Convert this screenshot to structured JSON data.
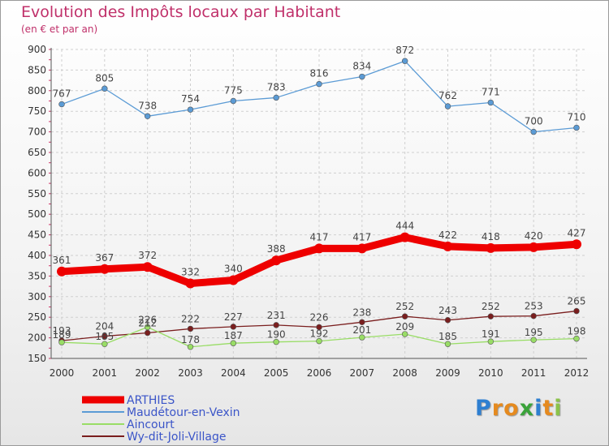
{
  "chart_data": {
    "type": "line",
    "title": "Evolution des Impôts locaux par Habitant",
    "subtitle": "(en € et par an)",
    "xlabel": "",
    "ylabel": "",
    "x": [
      "2000",
      "2001",
      "2002",
      "2003",
      "2004",
      "2005",
      "2006",
      "2007",
      "2008",
      "2009",
      "2010",
      "2011",
      "2012"
    ],
    "ylim": [
      150,
      900
    ],
    "yticks": [
      "150",
      "200",
      "250",
      "300",
      "350",
      "400",
      "450",
      "500",
      "550",
      "600",
      "650",
      "700",
      "750",
      "800",
      "850",
      "900"
    ],
    "grid": true,
    "legend_position": "bottom-left",
    "series": [
      {
        "name": "ARTHIES",
        "color": "#ee0000",
        "values": [
          361,
          367,
          372,
          332,
          340,
          388,
          417,
          417,
          444,
          422,
          418,
          420,
          427
        ],
        "labels": [
          "361",
          "367",
          "372",
          "332",
          "340",
          "388",
          "417",
          "417",
          "444",
          "422",
          "418",
          "420",
          "427"
        ]
      },
      {
        "name": "Maudétour-en-Vexin",
        "color": "#5b9bd5",
        "values": [
          767,
          805,
          738,
          754,
          775,
          783,
          816,
          834,
          872,
          762,
          771,
          700,
          710
        ],
        "labels": [
          "767",
          "805",
          "738",
          "754",
          "775",
          "783",
          "816",
          "834",
          "872",
          "762",
          "771",
          "700",
          "710"
        ]
      },
      {
        "name": "Aincourt",
        "color": "#99dd66",
        "values": [
          189,
          185,
          226,
          178,
          187,
          190,
          192,
          201,
          209,
          185,
          191,
          195,
          198
        ],
        "labels": [
          "189",
          "185",
          "226",
          "178",
          "187",
          "190",
          "192",
          "201",
          "209",
          "185",
          "191",
          "195",
          "198"
        ]
      },
      {
        "name": "Wy-dit-Joli-Village",
        "color": "#7a1e1e",
        "values": [
          193,
          204,
          212,
          222,
          227,
          231,
          226,
          238,
          252,
          243,
          252,
          253,
          265
        ],
        "labels": [
          "193",
          "204",
          "212",
          "222",
          "227",
          "231",
          "226",
          "238",
          "252",
          "243",
          "252",
          "253",
          "265"
        ]
      }
    ]
  },
  "logo": {
    "letters": [
      {
        "ch": "P",
        "color": "#2e7fd1"
      },
      {
        "ch": "r",
        "color": "#e58a1f"
      },
      {
        "ch": "o",
        "color": "#e58a1f"
      },
      {
        "ch": "x",
        "color": "#3aa33a"
      },
      {
        "ch": "i",
        "color": "#2e7fd1"
      },
      {
        "ch": "t",
        "color": "#e58a1f"
      },
      {
        "ch": "i",
        "color": "#8bc34a"
      }
    ]
  }
}
